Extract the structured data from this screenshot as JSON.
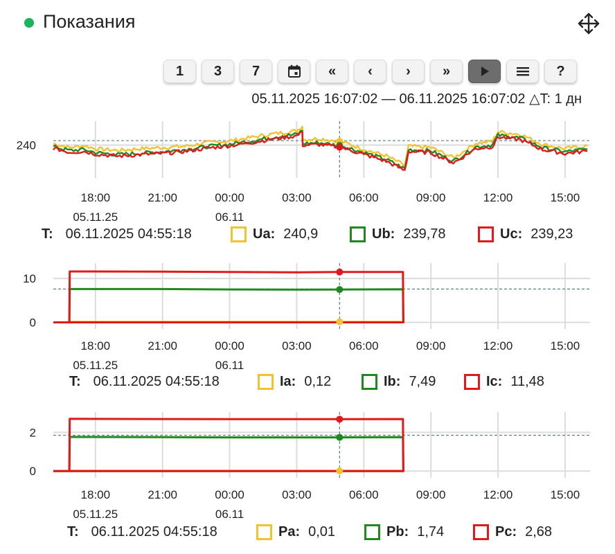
{
  "header": {
    "title": "Показания"
  },
  "toolbar": {
    "buttons": [
      {
        "name": "period-1-button",
        "label": "1"
      },
      {
        "name": "period-3-button",
        "label": "3"
      },
      {
        "name": "period-7-button",
        "label": "7"
      },
      {
        "name": "calendar-button",
        "icon": "calendar-icon"
      },
      {
        "name": "fast-back-button",
        "label": "«"
      },
      {
        "name": "back-button",
        "label": "‹"
      },
      {
        "name": "forward-button",
        "label": "›"
      },
      {
        "name": "fast-forward-button",
        "label": "»"
      },
      {
        "name": "play-button",
        "icon": "play-icon",
        "active": true
      },
      {
        "name": "menu-button",
        "icon": "menu-icon"
      },
      {
        "name": "help-button",
        "label": "?"
      }
    ]
  },
  "range_text": "05.11.2025 16:07:02 — 06.11.2025 16:07:02 △T: 1 дн",
  "colors": {
    "a": "#f2c230",
    "b": "#1e8a1e",
    "c": "#e01a1a",
    "grid": "#dcdcdc",
    "ref": "#5b7a8c",
    "accent": "#1bb55c"
  },
  "chart_data": [
    {
      "type": "line",
      "x_ticks": [
        "18:00",
        "21:00",
        "00:00",
        "03:00",
        "06:00",
        "09:00",
        "12:00",
        "15:00"
      ],
      "x_sublabels": {
        "18:00": "05.11.25",
        "00:00": "06.11"
      },
      "y_ticks": [
        240
      ],
      "ylim": [
        229,
        248
      ],
      "reference_line": 241.5,
      "cursor_time": "04:55",
      "x": [
        "16:07",
        "16:50",
        "17:30",
        "18:00",
        "19:00",
        "20:00",
        "21:00",
        "22:00",
        "23:00",
        "00:00",
        "01:00",
        "02:00",
        "03:00",
        "03:15",
        "03:16",
        "04:00",
        "05:00",
        "06:00",
        "07:00",
        "07:50",
        "08:00",
        "09:00",
        "10:00",
        "10:15",
        "11:00",
        "11:45",
        "12:00",
        "13:00",
        "14:00",
        "15:00",
        "16:00"
      ],
      "series": [
        {
          "name": "Ua",
          "color": "#f2c230",
          "values": [
            240.5,
            239.2,
            239.8,
            238.8,
            238.2,
            238.8,
            239.2,
            239.6,
            240.8,
            241.4,
            242.6,
            243.8,
            244.8,
            246.2,
            241.8,
            242.2,
            241.2,
            238.6,
            236.4,
            233.2,
            239.6,
            239.2,
            235.8,
            236.8,
            240.6,
            241.2,
            244.5,
            243.6,
            240.2,
            238.8,
            239.8
          ]
        },
        {
          "name": "Ub",
          "color": "#1e8a1e",
          "values": [
            239.5,
            238.2,
            238.5,
            237.5,
            236.8,
            237.3,
            237.8,
            238.5,
            239.5,
            240.3,
            241.4,
            242.7,
            243.6,
            244.8,
            240.5,
            240.8,
            239.8,
            237.5,
            235.2,
            232.1,
            238.5,
            238.1,
            234.7,
            235.7,
            239.4,
            240.1,
            243.3,
            242.4,
            239.1,
            237.8,
            238.6
          ]
        },
        {
          "name": "Uc",
          "color": "#e01a1a",
          "values": [
            239.0,
            237.6,
            237.9,
            237.0,
            236.3,
            236.8,
            237.2,
            237.9,
            239.0,
            239.8,
            240.9,
            242.1,
            243.1,
            244.3,
            240.0,
            240.2,
            239.2,
            236.9,
            234.6,
            231.5,
            237.9,
            237.5,
            234.1,
            235.1,
            238.8,
            239.5,
            242.7,
            241.8,
            238.5,
            237.2,
            238.0
          ]
        }
      ]
    },
    {
      "type": "line",
      "x_ticks": [
        "18:00",
        "21:00",
        "00:00",
        "03:00",
        "06:00",
        "09:00",
        "12:00",
        "15:00"
      ],
      "x_sublabels": {
        "18:00": "05.11.25",
        "00:00": "06.11"
      },
      "y_ticks": [
        0,
        10
      ],
      "ylim": [
        -1.5,
        13.5
      ],
      "reference_line": 7.6,
      "cursor_time": "04:55",
      "x": [
        "16:07",
        "16:50",
        "16:51",
        "21:00",
        "00:00",
        "03:00",
        "04:55",
        "07:45",
        "07:46",
        "16:07"
      ],
      "series": [
        {
          "name": "Ia",
          "color": "#f2c230",
          "values": [
            0,
            0,
            0.12,
            0.12,
            0.12,
            0.12,
            0.12,
            0.12,
            0,
            0
          ]
        },
        {
          "name": "Ib",
          "color": "#1e8a1e",
          "values": [
            0,
            0,
            7.6,
            7.6,
            7.5,
            7.45,
            7.49,
            7.55,
            0,
            0
          ]
        },
        {
          "name": "Ic",
          "color": "#e01a1a",
          "values": [
            0,
            0,
            11.6,
            11.55,
            11.5,
            11.4,
            11.48,
            11.5,
            0,
            0
          ]
        }
      ]
    },
    {
      "type": "line",
      "x_ticks": [
        "18:00",
        "21:00",
        "00:00",
        "03:00",
        "06:00",
        "09:00",
        "12:00",
        "15:00"
      ],
      "x_sublabels": {
        "18:00": "05.11.25",
        "00:00": "06.11"
      },
      "y_ticks": [
        0,
        2
      ],
      "ylim": [
        -0.35,
        3.05
      ],
      "reference_line": 1.85,
      "cursor_time": "04:55",
      "x": [
        "16:07",
        "16:50",
        "16:51",
        "21:00",
        "00:00",
        "03:00",
        "04:55",
        "07:45",
        "07:46",
        "16:07"
      ],
      "series": [
        {
          "name": "Pa",
          "color": "#f2c230",
          "values": [
            0,
            0,
            0.01,
            0.01,
            0.01,
            0.01,
            0.01,
            0.01,
            0,
            0
          ]
        },
        {
          "name": "Pb",
          "color": "#1e8a1e",
          "values": [
            0,
            0,
            1.76,
            1.75,
            1.74,
            1.74,
            1.74,
            1.75,
            0,
            0
          ]
        },
        {
          "name": "Pc",
          "color": "#e01a1a",
          "values": [
            0,
            0,
            2.7,
            2.69,
            2.68,
            2.68,
            2.68,
            2.69,
            0,
            0
          ]
        }
      ]
    }
  ],
  "legends": [
    {
      "t_label": "T:",
      "t_value": "06.11.2025 04:55:18",
      "items": [
        {
          "label": "Ua:",
          "value": "240,9"
        },
        {
          "label": "Ub:",
          "value": "239,78"
        },
        {
          "label": "Uc:",
          "value": "239,23"
        }
      ]
    },
    {
      "t_label": "T:",
      "t_value": "06.11.2025 04:55:18",
      "items": [
        {
          "label": "Ia:",
          "value": "0,12"
        },
        {
          "label": "Ib:",
          "value": "7,49"
        },
        {
          "label": "Ic:",
          "value": "11,48"
        }
      ]
    },
    {
      "t_label": "T:",
      "t_value": "06.11.2025 04:55:18",
      "items": [
        {
          "label": "Pa:",
          "value": "0,01"
        },
        {
          "label": "Pb:",
          "value": "1,74"
        },
        {
          "label": "Pc:",
          "value": "2,68"
        }
      ]
    }
  ]
}
